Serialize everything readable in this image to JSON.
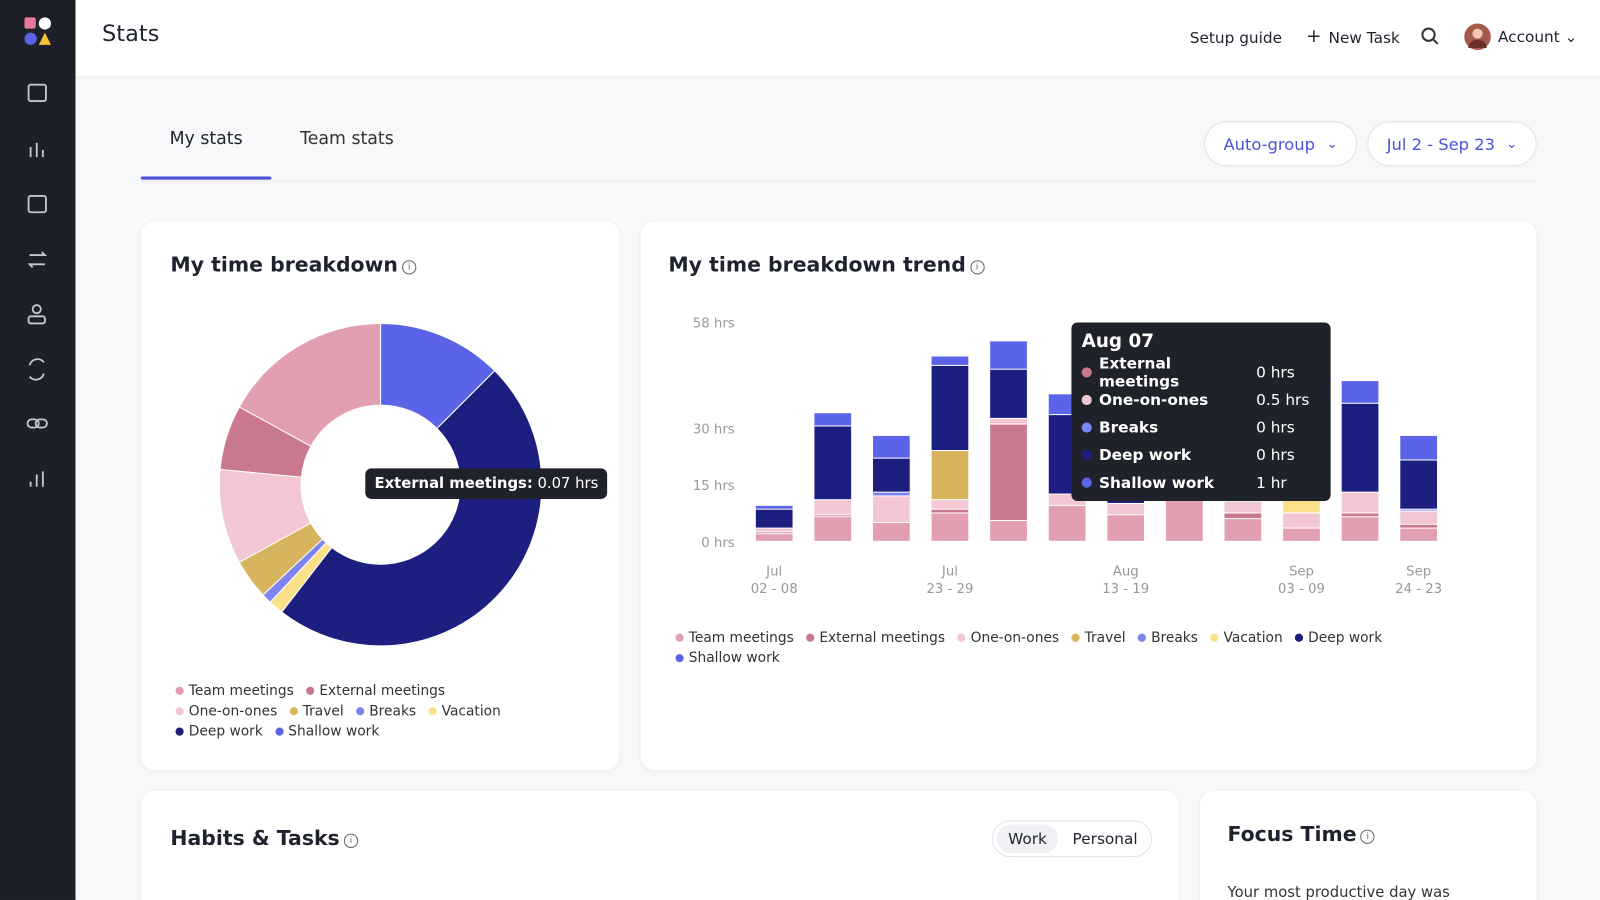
{
  "header": {
    "title": "Stats",
    "setup_guide": "Setup guide",
    "new_task": "New Task",
    "account": "Account"
  },
  "tabs": [
    "My stats",
    "Team stats"
  ],
  "controls": {
    "group": "Auto-group",
    "date_range": "Jul 2 - Sep 23"
  },
  "breakdown": {
    "title": "My time breakdown",
    "tooltip": {
      "label": "External meetings:",
      "value": "0.07 hrs"
    },
    "chart_data": {
      "type": "donut",
      "categories": [
        "Team meetings",
        "External meetings",
        "One-on-ones",
        "Travel",
        "Breaks",
        "Vacation",
        "Deep work",
        "Shallow work"
      ],
      "values": [
        17,
        6.5,
        9.5,
        4,
        1,
        1.5,
        48,
        12.5
      ],
      "colors": [
        "#e29fb2",
        "#c9788e",
        "#f2c6d2",
        "#d9b45f",
        "#7b84f0",
        "#fbe08a",
        "#1c1f7f",
        "#5b63e8"
      ]
    }
  },
  "trend": {
    "title": "My time breakdown trend",
    "chart_data": {
      "type": "stacked-bar",
      "categories": [
        [
          "Jul",
          "02 - 08"
        ],
        null,
        null,
        [
          "Jul",
          "23 - 29"
        ],
        null,
        null,
        [
          "Aug",
          "13 - 19"
        ],
        null,
        null,
        [
          "Sep",
          "03 - 09"
        ],
        null,
        [
          "Sep",
          "24 - 23"
        ]
      ],
      "series": [
        {
          "name": "Team meetings",
          "color": "#e29fb2",
          "values": [
            2,
            6.5,
            5,
            7.5,
            5.5,
            9.5,
            7,
            11.5,
            6,
            3.5,
            6.5,
            3.5
          ]
        },
        {
          "name": "External meetings",
          "color": "#c9788e",
          "values": [
            0.5,
            0.5,
            0,
            1,
            25.5,
            0,
            0,
            1,
            1.5,
            0,
            1,
            1
          ]
        },
        {
          "name": "One-on-ones",
          "color": "#f2c6d2",
          "values": [
            1,
            4,
            7,
            2.5,
            1.5,
            3,
            3,
            0,
            3,
            4,
            5.5,
            3.5
          ]
        },
        {
          "name": "Travel",
          "color": "#d9b45f",
          "values": [
            0,
            0,
            0,
            13,
            0,
            0,
            0,
            0,
            0,
            0,
            0,
            0
          ]
        },
        {
          "name": "Breaks",
          "color": "#7b84f0",
          "values": [
            0,
            0,
            1,
            0,
            0,
            0,
            0,
            0,
            0,
            0,
            0,
            0.5
          ]
        },
        {
          "name": "Vacation",
          "color": "#fbe08a",
          "values": [
            0,
            0,
            0,
            0,
            0,
            0,
            0,
            0,
            0,
            5,
            0,
            0
          ]
        },
        {
          "name": "Deep work",
          "color": "#1c1f7f",
          "values": [
            5,
            19.5,
            9,
            22.5,
            13,
            21,
            8,
            10,
            9,
            10,
            23.5,
            13
          ]
        },
        {
          "name": "Shallow work",
          "color": "#5b63e8",
          "values": [
            1,
            3.5,
            6,
            2.5,
            7.5,
            5.5,
            4,
            5,
            4,
            4,
            6,
            6.5
          ]
        }
      ],
      "ylim": [
        0,
        58
      ],
      "yticks": [
        {
          "value": 0,
          "label": "0 hrs"
        },
        {
          "value": 15,
          "label": "15 hrs"
        },
        {
          "value": 30,
          "label": "30 hrs"
        },
        {
          "value": 58,
          "label": "58 hrs"
        }
      ]
    },
    "tooltip": {
      "title": "Aug 07",
      "rows": [
        {
          "name": "External meetings",
          "value": "0 hrs"
        },
        {
          "name": "One-on-ones",
          "value": "0.5 hrs"
        },
        {
          "name": "Breaks",
          "value": "0 hrs"
        },
        {
          "name": "Deep work",
          "value": "0 hrs"
        },
        {
          "name": "Shallow work",
          "value": "1 hr"
        }
      ]
    }
  },
  "habits": {
    "title": "Habits & Tasks",
    "toggle": [
      "Work",
      "Personal"
    ]
  },
  "focus": {
    "title": "Focus Time",
    "text": "Your most productive day was"
  }
}
